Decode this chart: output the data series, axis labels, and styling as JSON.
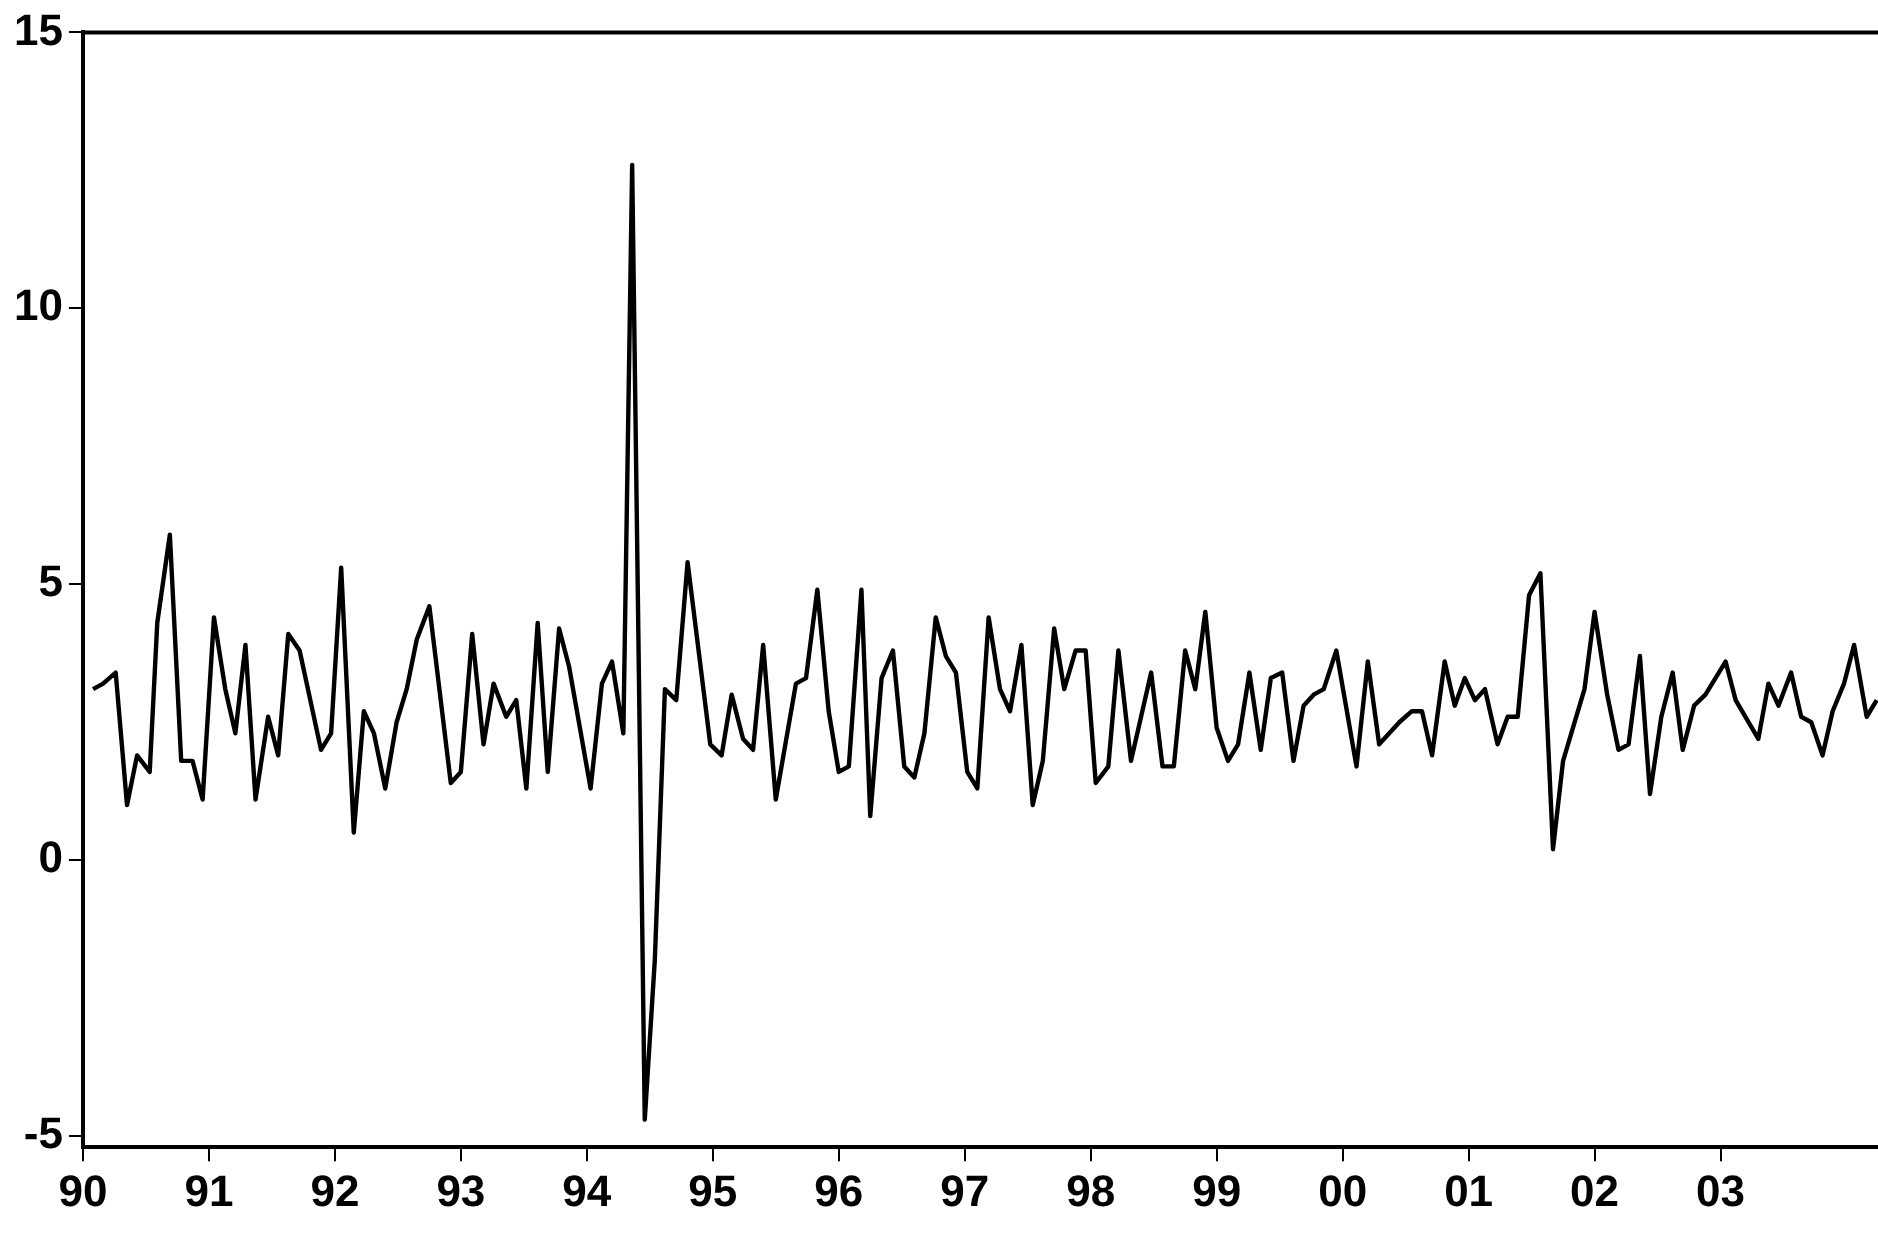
{
  "chart_data": {
    "type": "line",
    "xlim": [
      1990,
      2004.25
    ],
    "ylim": [
      -5.2,
      15
    ],
    "xticks": [
      {
        "value": 1990,
        "label": "90"
      },
      {
        "value": 1991,
        "label": "91"
      },
      {
        "value": 1992,
        "label": "92"
      },
      {
        "value": 1993,
        "label": "93"
      },
      {
        "value": 1994,
        "label": "94"
      },
      {
        "value": 1995,
        "label": "95"
      },
      {
        "value": 1996,
        "label": "96"
      },
      {
        "value": 1997,
        "label": "97"
      },
      {
        "value": 1998,
        "label": "98"
      },
      {
        "value": 1999,
        "label": "99"
      },
      {
        "value": 2000,
        "label": "00"
      },
      {
        "value": 2001,
        "label": "01"
      },
      {
        "value": 2002,
        "label": "02"
      },
      {
        "value": 2003,
        "label": "03"
      }
    ],
    "yticks": [
      -5,
      0,
      5,
      10,
      15
    ],
    "grid": false,
    "legend": false,
    "marker": "none",
    "line_style": "solid",
    "series": [
      {
        "color": "#000000",
        "x": [
          1990.08,
          1990.16,
          1990.26,
          1990.35,
          1990.43,
          1990.53,
          1990.59,
          1990.69,
          1990.78,
          1990.87,
          1990.95,
          1991.04,
          1991.13,
          1991.21,
          1991.29,
          1991.37,
          1991.47,
          1991.55,
          1991.63,
          1991.72,
          1991.89,
          1991.97,
          1992.05,
          1992.15,
          1992.23,
          1992.31,
          1992.4,
          1992.49,
          1992.57,
          1992.65,
          1992.75,
          1992.92,
          1993.0,
          1993.09,
          1993.18,
          1993.26,
          1993.36,
          1993.44,
          1993.52,
          1993.61,
          1993.69,
          1993.78,
          1993.86,
          1994.03,
          1994.12,
          1994.2,
          1994.29,
          1994.36,
          1994.46,
          1994.54,
          1994.62,
          1994.71,
          1994.8,
          1994.98,
          1995.07,
          1995.15,
          1995.24,
          1995.32,
          1995.4,
          1995.5,
          1995.66,
          1995.74,
          1995.83,
          1995.92,
          1996.0,
          1996.08,
          1996.18,
          1996.25,
          1996.34,
          1996.43,
          1996.52,
          1996.6,
          1996.68,
          1996.77,
          1996.85,
          1996.93,
          1997.02,
          1997.1,
          1997.19,
          1997.28,
          1997.36,
          1997.45,
          1997.54,
          1997.62,
          1997.71,
          1997.79,
          1997.88,
          1997.96,
          1998.04,
          1998.14,
          1998.22,
          1998.32,
          1998.48,
          1998.57,
          1998.66,
          1998.75,
          1998.83,
          1998.91,
          1999.0,
          1999.09,
          1999.17,
          1999.26,
          1999.35,
          1999.43,
          1999.52,
          1999.61,
          1999.69,
          1999.77,
          1999.85,
          1999.95,
          2000.11,
          2000.2,
          2000.29,
          2000.45,
          2000.55,
          2000.63,
          2000.71,
          2000.81,
          2000.89,
          2000.97,
          2001.05,
          2001.13,
          2001.23,
          2001.31,
          2001.39,
          2001.48,
          2001.57,
          2001.67,
          2001.75,
          2001.92,
          2002.0,
          2002.1,
          2002.19,
          2002.27,
          2002.36,
          2002.44,
          2002.53,
          2002.62,
          2002.7,
          2002.79,
          2002.88,
          2003.04,
          2003.12,
          2003.3,
          2003.38,
          2003.46,
          2003.56,
          2003.64,
          2003.72,
          2003.81,
          2003.89,
          2003.98,
          2004.06,
          2004.16,
          2004.24
        ],
        "values": [
          3.1,
          3.2,
          3.4,
          1.0,
          1.9,
          1.6,
          4.3,
          5.9,
          1.8,
          1.8,
          1.1,
          4.4,
          3.1,
          2.3,
          3.9,
          1.1,
          2.6,
          1.9,
          4.1,
          3.8,
          2.0,
          2.3,
          5.3,
          0.5,
          2.7,
          2.3,
          1.3,
          2.5,
          3.1,
          4.0,
          4.6,
          1.4,
          1.6,
          4.1,
          2.1,
          3.2,
          2.6,
          2.9,
          1.3,
          4.3,
          1.6,
          4.2,
          3.5,
          1.3,
          3.2,
          3.6,
          2.3,
          12.6,
          -4.7,
          -1.8,
          3.1,
          2.9,
          5.4,
          2.1,
          1.9,
          3.0,
          2.2,
          2.0,
          3.9,
          1.1,
          3.2,
          3.3,
          4.9,
          2.7,
          1.6,
          1.7,
          4.9,
          0.8,
          3.3,
          3.8,
          1.7,
          1.5,
          2.3,
          4.4,
          3.7,
          3.4,
          1.6,
          1.3,
          4.4,
          3.1,
          2.7,
          3.9,
          1.0,
          1.8,
          4.2,
          3.1,
          3.8,
          3.8,
          1.4,
          1.7,
          3.8,
          1.8,
          3.4,
          1.7,
          1.7,
          3.8,
          3.1,
          4.5,
          2.4,
          1.8,
          2.1,
          3.4,
          2.0,
          3.3,
          3.4,
          1.8,
          2.8,
          3.0,
          3.1,
          3.8,
          1.7,
          3.6,
          2.1,
          2.5,
          2.7,
          2.7,
          1.9,
          3.6,
          2.8,
          3.3,
          2.9,
          3.1,
          2.1,
          2.6,
          2.6,
          4.8,
          5.2,
          0.2,
          1.8,
          3.1,
          4.5,
          3.0,
          2.0,
          2.1,
          3.7,
          1.2,
          2.6,
          3.4,
          2.0,
          2.8,
          3.0,
          3.6,
          2.9,
          2.2,
          3.2,
          2.8,
          3.4,
          2.6,
          2.5,
          1.9,
          2.7,
          3.2,
          3.9,
          2.6,
          2.9
        ]
      }
    ]
  }
}
